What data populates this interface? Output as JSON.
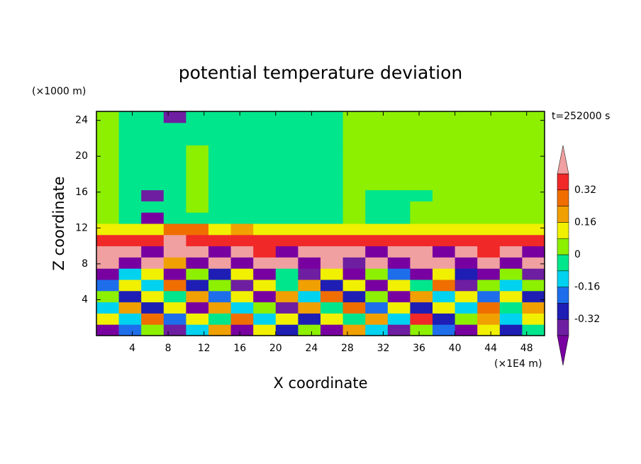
{
  "chart_data": {
    "type": "heatmap",
    "title": "potential temperature deviation",
    "x_label": "X coordinate",
    "y_label": "Z coordinate",
    "x_unit": "(×1E4 m)",
    "y_unit": "(×1000 m)",
    "time_label": "t=252000 s",
    "xlim": [
      0,
      50
    ],
    "ylim": [
      0,
      25
    ],
    "xticks": [
      4,
      8,
      12,
      16,
      20,
      24,
      28,
      32,
      36,
      40,
      44,
      48
    ],
    "yticks": [
      4,
      8,
      12,
      16,
      20,
      24
    ],
    "x": [
      1.25,
      3.75,
      6.25,
      8.75,
      11.25,
      13.75,
      16.25,
      18.75,
      21.25,
      23.75,
      26.25,
      28.75,
      31.25,
      33.75,
      36.25,
      38.75,
      41.25,
      43.75,
      46.25,
      48.75
    ],
    "y": [
      0.625,
      1.875,
      3.125,
      4.375,
      5.625,
      6.875,
      8.125,
      9.375,
      10.625,
      11.875,
      13.125,
      14.375,
      15.625,
      16.875,
      18.125,
      19.375,
      20.625,
      21.875,
      23.125,
      24.375
    ],
    "z": [
      [
        -0.45,
        -0.2,
        0.05,
        -0.36,
        -0.1,
        0.2,
        -0.45,
        0.1,
        -0.28,
        0.02,
        -0.45,
        0.18,
        -0.12,
        -0.36,
        0.05,
        -0.2,
        -0.45,
        0.1,
        -0.3,
        -0.05
      ],
      [
        0.1,
        -0.12,
        0.26,
        -0.2,
        0.12,
        -0.05,
        0.3,
        -0.15,
        0.08,
        -0.3,
        0.15,
        -0.08,
        0.22,
        -0.1,
        0.35,
        -0.25,
        0.05,
        0.2,
        -0.12,
        0.1
      ],
      [
        -0.1,
        0.18,
        -0.28,
        0.1,
        -0.45,
        0.22,
        -0.1,
        0.05,
        -0.36,
        0.16,
        -0.05,
        0.28,
        -0.2,
        0.12,
        -0.3,
        0.1,
        -0.15,
        0.3,
        -0.05,
        0.18
      ],
      [
        0.05,
        -0.3,
        0.12,
        -0.08,
        0.2,
        -0.2,
        0.1,
        -0.45,
        0.18,
        -0.1,
        0.3,
        -0.25,
        0.05,
        -0.45,
        0.2,
        -0.1,
        0.15,
        -0.2,
        0.1,
        -0.3
      ],
      [
        -0.2,
        0.08,
        -0.12,
        0.25,
        -0.3,
        0.05,
        -0.36,
        0.15,
        -0.05,
        0.2,
        -0.3,
        0.1,
        -0.45,
        0.12,
        -0.08,
        0.24,
        -0.36,
        0.05,
        -0.15,
        0.02
      ],
      [
        -0.45,
        -0.1,
        0.15,
        -0.45,
        0.05,
        -0.3,
        0.1,
        -0.45,
        -0.05,
        -0.36,
        0.12,
        -0.45,
        0.06,
        -0.2,
        -0.45,
        0.1,
        -0.3,
        -0.45,
        0.05,
        -0.36
      ],
      [
        0.45,
        -0.45,
        0.45,
        0.2,
        -0.45,
        0.45,
        -0.45,
        0.45,
        0.45,
        -0.45,
        0.45,
        -0.36,
        0.45,
        -0.45,
        0.45,
        0.45,
        -0.45,
        0.45,
        -0.45,
        0.45
      ],
      [
        0.45,
        0.45,
        -0.45,
        0.45,
        0.45,
        -0.45,
        0.45,
        0.36,
        -0.45,
        0.45,
        0.45,
        0.45,
        -0.45,
        0.45,
        0.45,
        -0.45,
        0.45,
        0.36,
        0.45,
        -0.45
      ],
      [
        0.36,
        0.36,
        0.36,
        0.45,
        0.36,
        0.36,
        0.36,
        0.36,
        0.36,
        0.36,
        0.36,
        0.36,
        0.36,
        0.36,
        0.36,
        0.36,
        0.36,
        0.36,
        0.36,
        0.36
      ],
      [
        0.12,
        0.12,
        0.1,
        0.28,
        0.26,
        0.12,
        0.2,
        0.1,
        0.12,
        0.1,
        0.12,
        0.1,
        0.12,
        0.1,
        0.12,
        0.1,
        0.12,
        0.12,
        0.1,
        0.12
      ],
      [
        0.04,
        -0.04,
        -0.45,
        -0.04,
        -0.04,
        -0.04,
        -0.04,
        -0.04,
        -0.04,
        -0.04,
        -0.04,
        0.04,
        -0.04,
        -0.04,
        0.04,
        0.04,
        0.04,
        0.04,
        0.04,
        0.04
      ],
      [
        0.04,
        -0.04,
        -0.04,
        -0.04,
        0.04,
        -0.04,
        -0.04,
        -0.04,
        -0.04,
        -0.04,
        -0.04,
        0.04,
        -0.04,
        -0.04,
        0.04,
        0.04,
        0.04,
        0.04,
        0.04,
        0.04
      ],
      [
        0.04,
        -0.04,
        -0.36,
        -0.04,
        0.04,
        -0.04,
        -0.04,
        -0.04,
        -0.04,
        -0.04,
        -0.04,
        0.04,
        -0.04,
        -0.04,
        -0.04,
        0.04,
        0.04,
        0.04,
        0.04,
        0.04
      ],
      [
        0.04,
        -0.04,
        -0.04,
        -0.04,
        0.04,
        -0.04,
        -0.04,
        -0.04,
        -0.04,
        -0.04,
        -0.04,
        0.04,
        0.04,
        0.04,
        0.04,
        0.04,
        0.04,
        0.04,
        0.04,
        0.04
      ],
      [
        0.04,
        -0.04,
        -0.04,
        -0.04,
        0.04,
        -0.04,
        -0.04,
        -0.04,
        -0.04,
        -0.04,
        -0.04,
        0.04,
        0.04,
        0.04,
        0.04,
        0.04,
        0.04,
        0.04,
        0.04,
        0.04
      ],
      [
        0.04,
        -0.04,
        -0.04,
        -0.04,
        0.04,
        -0.04,
        -0.04,
        -0.04,
        -0.04,
        -0.04,
        -0.04,
        0.04,
        0.04,
        0.04,
        0.04,
        0.04,
        0.04,
        0.04,
        0.04,
        0.04
      ],
      [
        0.04,
        -0.04,
        -0.04,
        -0.04,
        0.04,
        -0.04,
        -0.04,
        -0.04,
        -0.04,
        -0.04,
        -0.04,
        0.04,
        0.04,
        0.04,
        0.04,
        0.04,
        0.04,
        0.04,
        0.04,
        0.04
      ],
      [
        0.04,
        -0.04,
        -0.04,
        -0.04,
        -0.04,
        -0.04,
        -0.04,
        -0.04,
        -0.04,
        -0.04,
        -0.04,
        0.04,
        0.04,
        0.04,
        0.04,
        0.04,
        0.04,
        0.04,
        0.04,
        0.04
      ],
      [
        0.04,
        -0.04,
        -0.04,
        -0.04,
        -0.04,
        -0.04,
        -0.04,
        -0.04,
        -0.04,
        -0.04,
        -0.04,
        0.04,
        0.04,
        0.04,
        0.04,
        0.04,
        0.04,
        0.04,
        0.04,
        0.04
      ],
      [
        0.04,
        -0.04,
        -0.04,
        -0.36,
        -0.04,
        -0.04,
        -0.04,
        -0.04,
        -0.04,
        -0.04,
        -0.04,
        0.04,
        0.04,
        0.04,
        0.04,
        0.04,
        0.04,
        0.04,
        0.04,
        0.04
      ]
    ],
    "levels": [
      -0.4,
      -0.32,
      -0.24,
      -0.16,
      -0.08,
      0,
      0.08,
      0.16,
      0.24,
      0.32,
      0.4
    ],
    "colors": [
      "#7800a0",
      "#6e1ea0",
      "#1e1eb4",
      "#1e6eeb",
      "#00d2f0",
      "#00e68c",
      "#8cf000",
      "#f0f000",
      "#f0a000",
      "#f06e00",
      "#f02828",
      "#f0a0a0"
    ],
    "colorbar_ticks": [
      -0.32,
      -0.16,
      0,
      0.16,
      0.32
    ]
  }
}
